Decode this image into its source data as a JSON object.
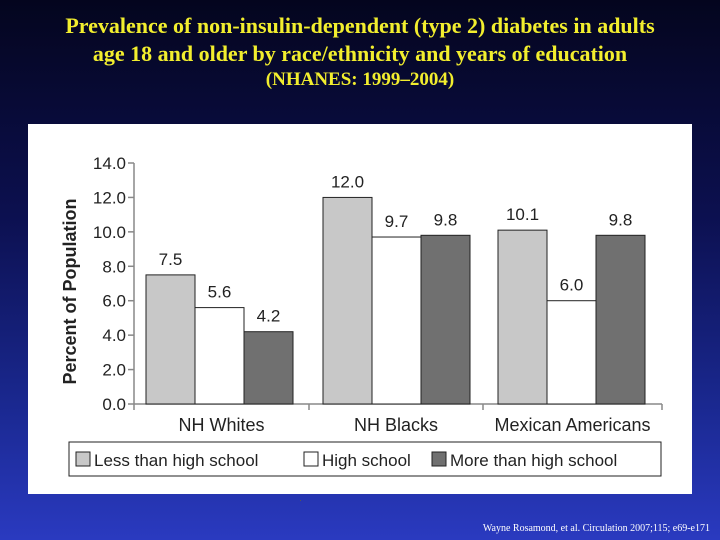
{
  "slide": {
    "title_line1": "Prevalence of non-insulin-dependent (type 2) diabetes in adults",
    "title_line2": "age 18  and  older by  race/ethnicity  and years  of education",
    "subtitle": "(NHANES: 1999–2004)",
    "source": "Wayne Rosamond, et al. Circulation  2007;115; e69-e171"
  },
  "chart_data": {
    "type": "bar",
    "title": "",
    "xlabel": "",
    "ylabel": "Percent of Population",
    "ylim": [
      0,
      14
    ],
    "yticks": [
      "0.0",
      "2.0",
      "4.0",
      "6.0",
      "8.0",
      "10.0",
      "12.0",
      "14.0"
    ],
    "categories": [
      "NH Whites",
      "NH Blacks",
      "Mexican Americans"
    ],
    "series": [
      {
        "name": "Less than high school",
        "values": [
          7.5,
          12.0,
          10.1
        ],
        "labels": [
          "7.5",
          "12.0",
          "10.1"
        ],
        "color": "#c8c8c8"
      },
      {
        "name": "High school",
        "values": [
          5.6,
          9.7,
          6.0
        ],
        "labels": [
          "5.6",
          "9.7",
          "6.0"
        ],
        "color": "#ffffff"
      },
      {
        "name": "More than high school",
        "values": [
          4.2,
          9.8,
          9.8
        ],
        "labels": [
          "4.2",
          "9.8",
          "9.8"
        ],
        "color": "#707070"
      }
    ],
    "legend": "bottom",
    "grid": false
  }
}
